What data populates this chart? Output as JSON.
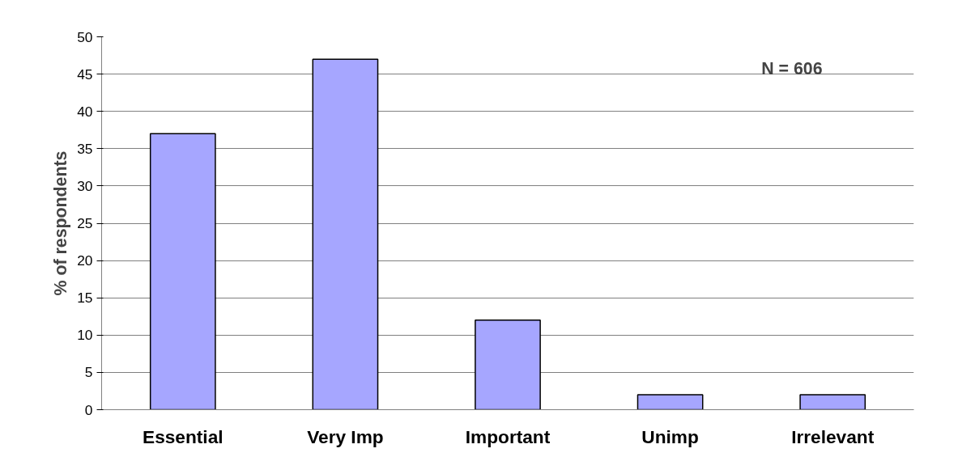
{
  "chart_data": {
    "type": "bar",
    "ylabel": "% of respondents",
    "categories": [
      "Essential",
      "Very Imp",
      "Important",
      "Unimp",
      "Irrelevant"
    ],
    "values": [
      37,
      47,
      12,
      2,
      2
    ],
    "color": "#a6a6ff",
    "ylim": [
      0,
      50
    ],
    "yticks": [
      0,
      5,
      10,
      15,
      20,
      25,
      30,
      35,
      40,
      45,
      50
    ],
    "grid": "y",
    "annotations": [
      "N = 606"
    ]
  }
}
